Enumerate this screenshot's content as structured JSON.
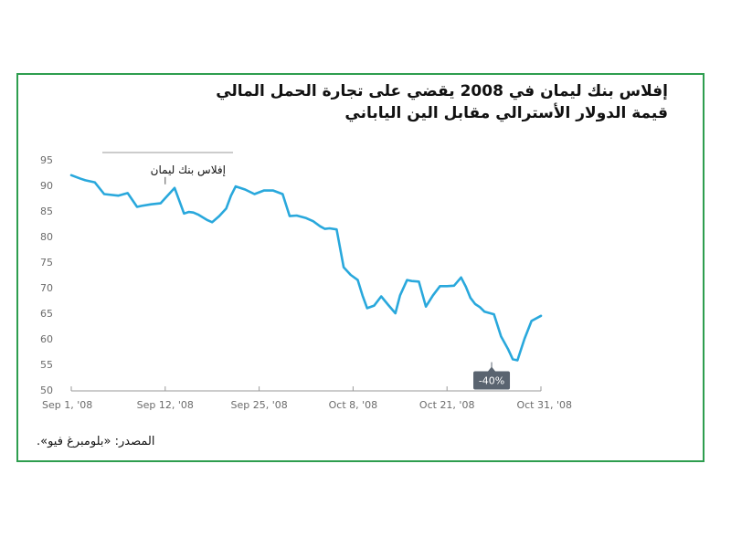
{
  "title_line1": "إفلاس بنك ليمان في 2008 يقضي على تجارة الحمل المالي",
  "title_line2": "قيمة الدولار الأسترالي مقابل الين الياباني",
  "source": "المصدر: «بلومبرغ فيو».",
  "colors": {
    "frame": "#2e9e4f",
    "line": "#29a8dc",
    "callout_bg": "#5a6470",
    "axis": "#9a9a9a"
  },
  "chart_data": {
    "type": "line",
    "title": "",
    "xlabel": "",
    "ylabel": "",
    "ylim": [
      50,
      95
    ],
    "yticks": [
      "95",
      "90",
      "85",
      "80",
      "75",
      "70",
      "65",
      "60",
      "55",
      "50"
    ],
    "xticks": [
      "Sep 1, '08",
      "Sep 12, '08",
      "Sep 25, '08",
      "Oct 8, '08",
      "Oct 21, '08",
      "Oct 31, '08"
    ],
    "x": [
      0,
      0.4,
      0.6,
      1,
      1.4,
      2,
      2.4,
      2.8,
      3.0,
      3.4,
      3.8,
      4,
      4.4,
      4.8,
      5,
      5.2,
      5.4,
      5.8,
      6,
      6.3,
      6.6,
      6.8,
      7,
      7.4,
      7.8,
      8.2,
      8.6,
      9.0,
      9.3,
      9.6,
      10,
      10.3,
      10.6,
      10.8,
      11,
      11.3,
      11.6,
      11.9,
      12.2,
      12.4,
      12.6,
      12.9,
      13.2,
      13.5,
      13.8,
      14.0,
      14.3,
      14.5,
      14.8,
      15.1,
      15.4,
      15.7,
      16,
      16.3,
      16.6,
      16.8,
      17,
      17.2,
      17.4,
      17.6,
      18,
      18.3,
      18.6,
      18.8,
      19,
      19.3,
      19.6,
      20
    ],
    "values": [
      92,
      91.3,
      91,
      90.6,
      88.3,
      88,
      88.5,
      85.8,
      86,
      86.3,
      86.5,
      87.5,
      89.5,
      84.5,
      84.8,
      84.7,
      84.3,
      83.2,
      82.8,
      84,
      85.5,
      88,
      89.8,
      89.2,
      88.3,
      89,
      89,
      88.3,
      84,
      84.1,
      83.6,
      83,
      82,
      81.5,
      81.6,
      81.4,
      74,
      72.5,
      71.5,
      68.5,
      66,
      66.5,
      68.3,
      66.6,
      65,
      68.5,
      71.5,
      71.3,
      71.2,
      66.3,
      68.5,
      70.3,
      70.3,
      70.4,
      72,
      70.2,
      68,
      66.8,
      66.2,
      65.3,
      64.8,
      60.5,
      58,
      56,
      55.8,
      60,
      63.5,
      64.5
    ],
    "annotations": [
      {
        "text": "إفلاس بنك ليمان",
        "x": 4.0,
        "y": 89.5
      },
      {
        "text": "-40%",
        "x": 17.9,
        "y": 55.8
      }
    ],
    "grid": false
  }
}
